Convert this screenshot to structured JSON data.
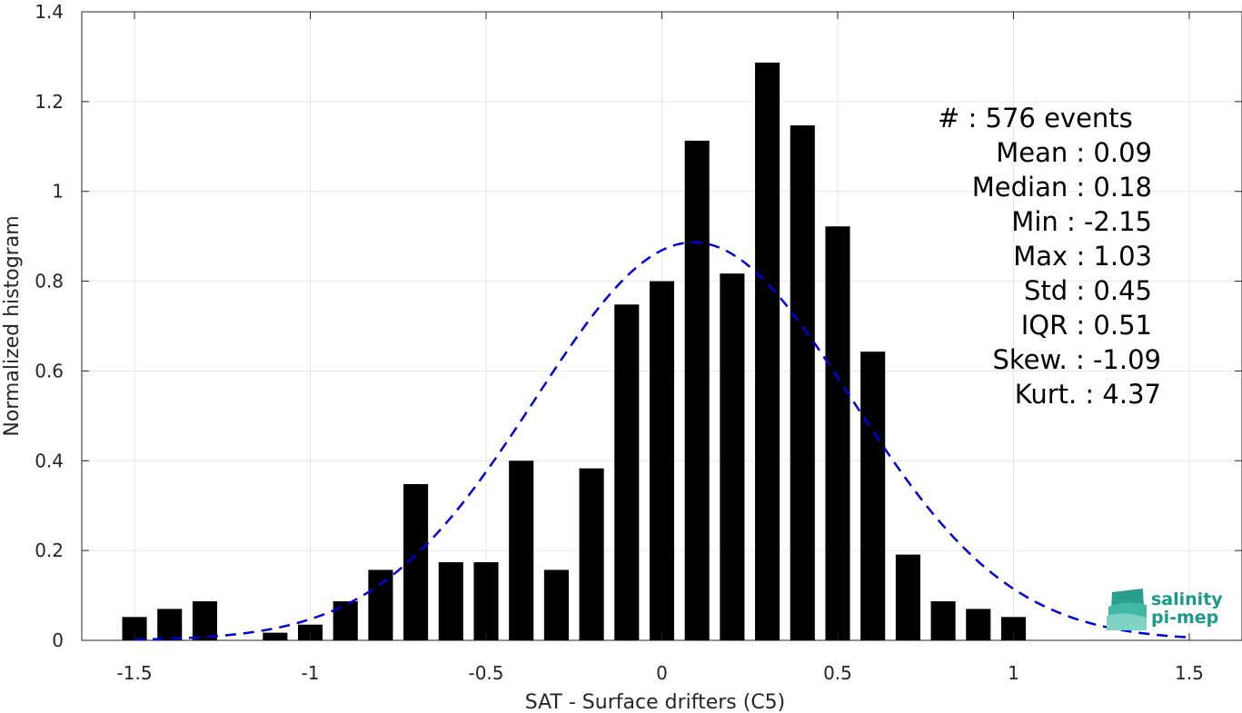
{
  "chart_data": {
    "type": "bar",
    "xlabel": "SAT - Surface drifters (C5)",
    "ylabel": "Normalized histogram",
    "xlim": [
      -1.65,
      1.65
    ],
    "ylim": [
      0,
      1.4
    ],
    "xticks": [
      -1.5,
      -1,
      -0.5,
      0,
      0.5,
      1,
      1.5
    ],
    "xtick_labels": [
      "-1.5",
      "-1",
      "-0.5",
      "0",
      "0.5",
      "1",
      "1.5"
    ],
    "yticks": [
      0,
      0.2,
      0.4,
      0.6,
      0.8,
      1,
      1.2,
      1.4
    ],
    "ytick_labels": [
      "0",
      "0.2",
      "0.4",
      "0.6",
      "0.8",
      "1",
      "1.2",
      "1.4"
    ],
    "grid": true,
    "bar_width": 0.07,
    "bar_color": "#000000",
    "bins": [
      {
        "x": -1.5,
        "y": 0.052
      },
      {
        "x": -1.4,
        "y": 0.07
      },
      {
        "x": -1.3,
        "y": 0.087
      },
      {
        "x": -1.1,
        "y": 0.017
      },
      {
        "x": -1.0,
        "y": 0.035
      },
      {
        "x": -0.9,
        "y": 0.087
      },
      {
        "x": -0.8,
        "y": 0.157
      },
      {
        "x": -0.7,
        "y": 0.348
      },
      {
        "x": -0.6,
        "y": 0.174
      },
      {
        "x": -0.5,
        "y": 0.174
      },
      {
        "x": -0.4,
        "y": 0.4
      },
      {
        "x": -0.3,
        "y": 0.157
      },
      {
        "x": -0.2,
        "y": 0.383
      },
      {
        "x": -0.1,
        "y": 0.748
      },
      {
        "x": 0.0,
        "y": 0.8
      },
      {
        "x": 0.1,
        "y": 1.113
      },
      {
        "x": 0.2,
        "y": 0.817
      },
      {
        "x": 0.3,
        "y": 1.287
      },
      {
        "x": 0.4,
        "y": 1.147
      },
      {
        "x": 0.5,
        "y": 0.922
      },
      {
        "x": 0.6,
        "y": 0.643
      },
      {
        "x": 0.7,
        "y": 0.191
      },
      {
        "x": 0.8,
        "y": 0.087
      },
      {
        "x": 0.9,
        "y": 0.07
      },
      {
        "x": 1.0,
        "y": 0.052
      }
    ],
    "fit_curve": {
      "type": "gaussian",
      "mean": 0.09,
      "std": 0.45,
      "x_range": [
        -1.5,
        1.5
      ],
      "style": "dashed",
      "color": "#0000dd"
    },
    "stats_lines": [
      "#  : 576 events",
      "Mean : 0.09",
      "Median : 0.18",
      "Min : -2.15",
      "Max : 1.03",
      "Std : 0.45",
      "IQR : 0.51",
      "Skew. : -1.09",
      "Kurt. : 4.37"
    ]
  },
  "logo": {
    "line1": "salinity",
    "line2": "pi-mep"
  }
}
